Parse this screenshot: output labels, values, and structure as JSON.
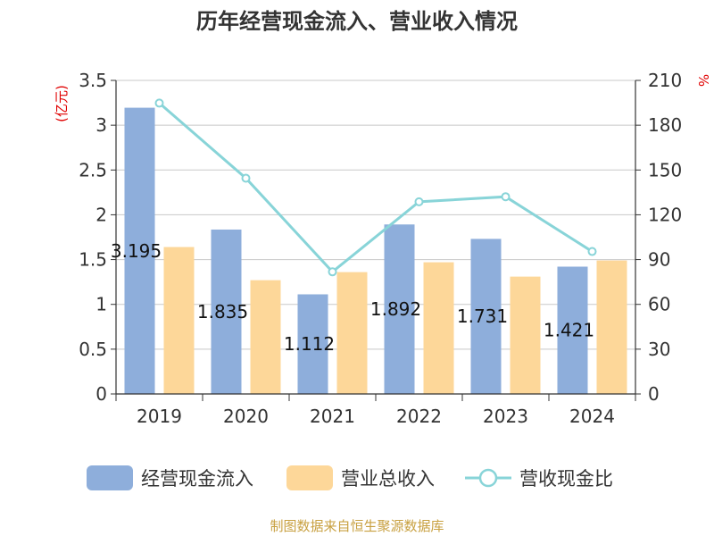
{
  "chart_data": {
    "type": "bar",
    "title": "历年经营现金流入、营业收入情况",
    "y_unit_left": "(亿元)",
    "y_unit_right": "%",
    "categories": [
      "2019",
      "2020",
      "2021",
      "2022",
      "2023",
      "2024"
    ],
    "ylim_left": [
      0,
      3.5
    ],
    "yticks_left": [
      "0",
      "0.5",
      "1",
      "1.5",
      "2",
      "2.5",
      "3",
      "3.5"
    ],
    "ylim_right": [
      0,
      210
    ],
    "yticks_right": [
      "0",
      "30",
      "60",
      "90",
      "120",
      "150",
      "180",
      "210"
    ],
    "series": [
      {
        "name": "经营现金流入",
        "kind": "bar",
        "axis": "left",
        "color": "#8eaedb",
        "values": [
          3.195,
          1.835,
          1.112,
          1.892,
          1.731,
          1.421
        ],
        "labels": [
          "3.195",
          "1.835",
          "1.112",
          "1.892",
          "1.731",
          "1.421"
        ]
      },
      {
        "name": "营业总收入",
        "kind": "bar",
        "axis": "left",
        "color": "#fdd799",
        "values": [
          1.64,
          1.27,
          1.36,
          1.47,
          1.31,
          1.49
        ]
      },
      {
        "name": "营收现金比",
        "kind": "line",
        "axis": "right",
        "color": "#88d4d8",
        "values": [
          194.8,
          144.5,
          81.8,
          128.7,
          132.1,
          95.4
        ]
      }
    ],
    "grid": true,
    "legend_position": "bottom"
  },
  "source": "制图数据来自恒生聚源数据库"
}
